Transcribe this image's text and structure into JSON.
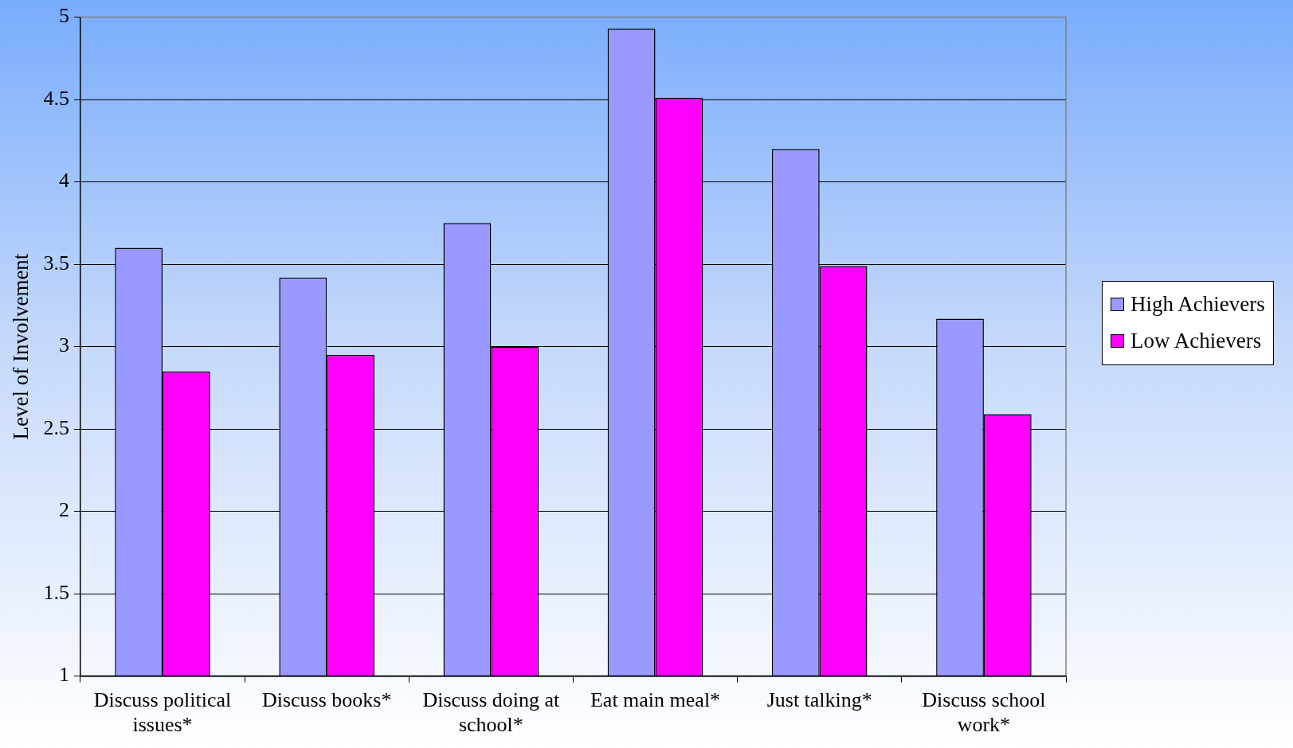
{
  "chart_data": {
    "type": "bar",
    "ylabel": "Level of Involvement",
    "categories": [
      "Discuss political issues*",
      "Discuss books*",
      "Discuss doing at school*",
      "Eat main meal*",
      "Just talking*",
      "Discuss school work*"
    ],
    "series": [
      {
        "name": "High Achievers",
        "color": "#9999ff",
        "values": [
          3.6,
          3.42,
          3.75,
          4.93,
          4.2,
          3.17
        ]
      },
      {
        "name": "Low Achievers",
        "color": "#ff00ff",
        "values": [
          2.85,
          2.95,
          3.0,
          4.51,
          3.49,
          2.59
        ]
      }
    ],
    "ylim": [
      1,
      5
    ],
    "yticks": [
      1,
      1.5,
      2,
      2.5,
      3,
      3.5,
      4,
      4.5,
      5
    ],
    "grid": "y",
    "legend": "right"
  }
}
